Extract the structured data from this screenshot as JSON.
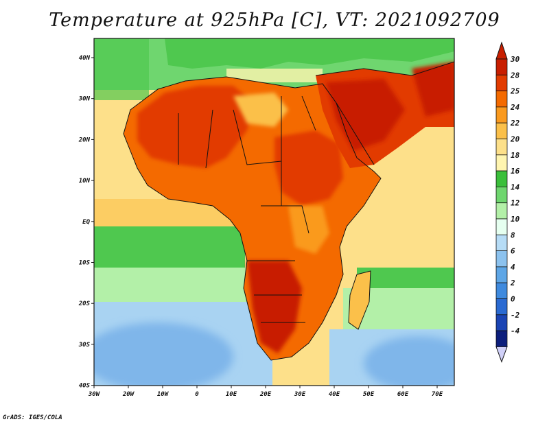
{
  "title": "Temperature at 925hPa [C], VT: 2021092709",
  "credit": "GrADS: IGES/COLA",
  "lat_labels": [
    "40N",
    "30N",
    "20N",
    "10N",
    "EQ",
    "10S",
    "20S",
    "30S",
    "40S"
  ],
  "lon_labels": [
    "30W",
    "20W",
    "10W",
    "0",
    "10E",
    "20E",
    "30E",
    "40E",
    "50E",
    "60E",
    "70E"
  ],
  "colorbar": {
    "labels": [
      "30",
      "28",
      "25",
      "24",
      "22",
      "20",
      "18",
      "16",
      "14",
      "12",
      "10",
      "8",
      "6",
      "4",
      "2",
      "0",
      "-2",
      "-4"
    ],
    "colors": [
      "#c81e00",
      "#e23b00",
      "#f46a00",
      "#fa9a1f",
      "#fbc04a",
      "#fde08a",
      "#fff5b0",
      "#3bbf3b",
      "#6fd66f",
      "#b3f0a8",
      "#e6fff0",
      "#b6dcf6",
      "#8cc2ee",
      "#5ea6e6",
      "#3f8ade",
      "#2a6ad2",
      "#1a44b4",
      "#0c1e7c"
    ],
    "top_color": "#c81e00",
    "bottom_color": "#d0d0f8"
  },
  "map": {
    "ocean_colors": {
      "cool_south": "#7fb6ea",
      "mid_south": "#a9d3f2",
      "green_band": "#4fc84f",
      "tropical": "#fde08a",
      "north_atlantic": "#6fd66f"
    },
    "land_colors": {
      "hot": "#e23b00",
      "very_hot": "#c81e00",
      "warm": "#f46a00",
      "mild": "#fbc04a"
    }
  }
}
